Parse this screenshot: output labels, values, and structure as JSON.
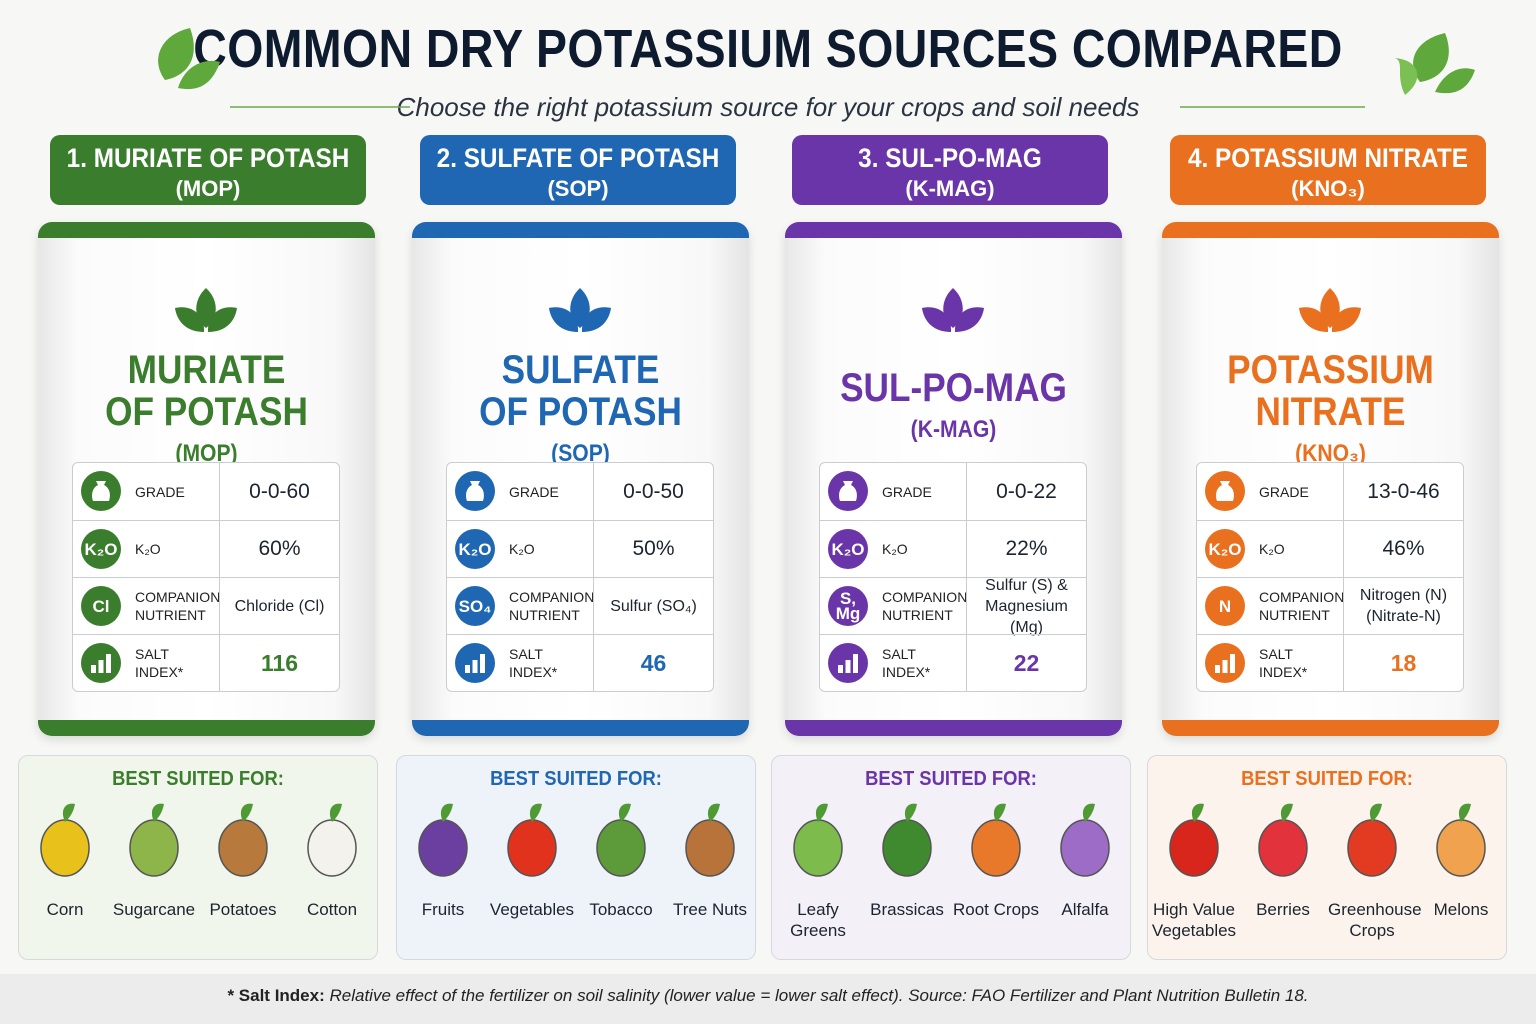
{
  "header": {
    "title": "COMMON DRY POTASSIUM SOURCES COMPARED",
    "subtitle": "Choose the right potassium source for your crops and soil needs"
  },
  "row_labels": {
    "grade": "GRADE",
    "k2o": "K₂O",
    "companion": "COMPANION NUTRIENT",
    "salt_index": "SALT INDEX*"
  },
  "k2o_icon": "K₂O",
  "best_suited": "BEST SUITED FOR:",
  "products": [
    {
      "heading": "1. MURIATE OF POTASH",
      "abbrev": "(MOP)",
      "bag_name": [
        "MURIATE",
        "OF POTASH"
      ],
      "color": "#3a7d2c",
      "grade": "0-0-60",
      "k2o": "60%",
      "companion_icon": "Cl",
      "companion": "Chloride (Cl)",
      "salt_index": "116",
      "crops": [
        "Corn",
        "Sugarcane",
        "Potatoes",
        "Cotton"
      ]
    },
    {
      "heading": "2. SULFATE OF POTASH",
      "abbrev": "(SOP)",
      "bag_name": [
        "SULFATE",
        "OF POTASH"
      ],
      "color": "#1f66b3",
      "grade": "0-0-50",
      "k2o": "50%",
      "companion_icon": "SO₄",
      "companion": "Sulfur (SO₄)",
      "salt_index": "46",
      "crops": [
        "Fruits",
        "Vegetables",
        "Tobacco",
        "Tree Nuts"
      ]
    },
    {
      "heading": "3. SUL-PO-MAG",
      "abbrev": "(K-MAG)",
      "bag_name": [
        "SUL-PO-MAG"
      ],
      "color": "#6a35a8",
      "grade": "0-0-22",
      "k2o": "22%",
      "companion_icon": "S, Mg",
      "companion": "Sulfur (S) & Magnesium (Mg)",
      "salt_index": "22",
      "crops": [
        "Leafy Greens",
        "Brassicas",
        "Root Crops",
        "Alfalfa"
      ]
    },
    {
      "heading": "4. POTASSIUM NITRATE",
      "abbrev": "(KNO₃)",
      "bag_name": [
        "POTASSIUM",
        "NITRATE"
      ],
      "color": "#e8701e",
      "grade": "13-0-46",
      "k2o": "46%",
      "companion_icon": "N",
      "companion": "Nitrogen (N) (Nitrate-N)",
      "salt_index": "18",
      "crops": [
        "High Value Vegetables",
        "Berries",
        "Greenhouse Crops",
        "Melons"
      ]
    }
  ],
  "footnote": {
    "label": "* Salt Index:",
    "text": "Relative effect of the fertilizer on soil salinity (lower value = lower salt effect). Source: FAO Fertilizer and Plant Nutrition Bulletin 18."
  }
}
